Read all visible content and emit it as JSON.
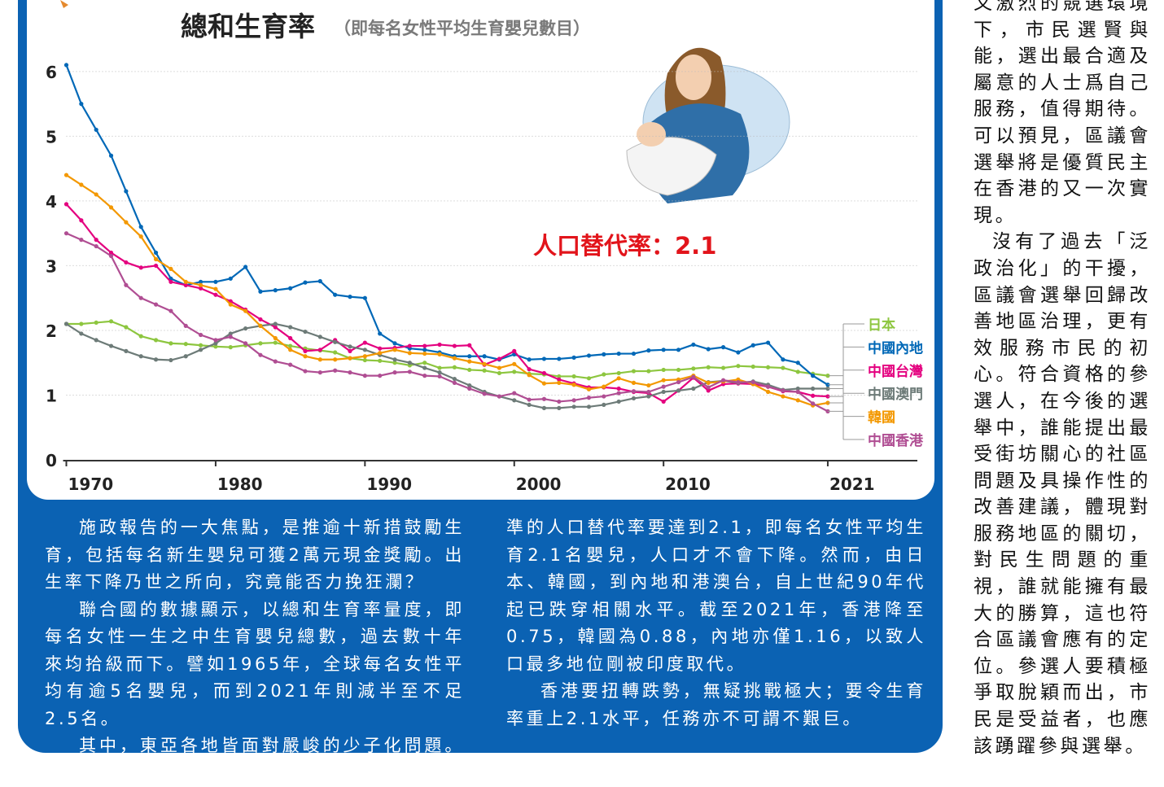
{
  "chart_data": {
    "type": "line",
    "title": "總和生育率",
    "subtitle": "（即每名女性平均生育嬰兒數目）",
    "annotation": "人口替代率：2.1",
    "x": [
      1970,
      1971,
      1972,
      1973,
      1974,
      1975,
      1976,
      1977,
      1978,
      1979,
      1980,
      1981,
      1982,
      1983,
      1984,
      1985,
      1986,
      1987,
      1988,
      1989,
      1990,
      1991,
      1992,
      1993,
      1994,
      1995,
      1996,
      1997,
      1998,
      1999,
      2000,
      2001,
      2002,
      2003,
      2004,
      2005,
      2006,
      2007,
      2008,
      2009,
      2010,
      2011,
      2012,
      2013,
      2014,
      2015,
      2016,
      2017,
      2018,
      2019,
      2020,
      2021
    ],
    "xlim": [
      1970,
      2027
    ],
    "xticks": [
      1970,
      1980,
      1990,
      2000,
      2010,
      2021
    ],
    "ylim": [
      0,
      6.3
    ],
    "yticks": [
      0,
      1,
      2,
      3,
      4,
      5,
      6
    ],
    "grid": true,
    "series": [
      {
        "name": "日本",
        "color": "#8dc63f",
        "values": [
          2.1,
          2.1,
          2.12,
          2.14,
          2.05,
          1.91,
          1.85,
          1.8,
          1.79,
          1.77,
          1.75,
          1.74,
          1.77,
          1.8,
          1.81,
          1.76,
          1.72,
          1.69,
          1.66,
          1.57,
          1.54,
          1.53,
          1.5,
          1.46,
          1.5,
          1.42,
          1.43,
          1.39,
          1.38,
          1.34,
          1.36,
          1.33,
          1.32,
          1.29,
          1.29,
          1.26,
          1.32,
          1.34,
          1.37,
          1.37,
          1.39,
          1.39,
          1.41,
          1.43,
          1.42,
          1.45,
          1.44,
          1.43,
          1.42,
          1.36,
          1.33,
          1.3
        ]
      },
      {
        "name": "中國內地",
        "color": "#0068b7",
        "values": [
          6.1,
          5.5,
          5.1,
          4.7,
          4.15,
          3.6,
          3.2,
          2.8,
          2.7,
          2.75,
          2.75,
          2.8,
          2.98,
          2.6,
          2.62,
          2.65,
          2.74,
          2.76,
          2.55,
          2.52,
          2.5,
          1.95,
          1.8,
          1.72,
          1.7,
          1.66,
          1.6,
          1.6,
          1.6,
          1.55,
          1.63,
          1.55,
          1.56,
          1.56,
          1.58,
          1.61,
          1.63,
          1.64,
          1.64,
          1.69,
          1.7,
          1.7,
          1.78,
          1.71,
          1.74,
          1.66,
          1.77,
          1.81,
          1.55,
          1.5,
          1.3,
          1.16
        ]
      },
      {
        "name": "中國台灣",
        "color": "#e4007f",
        "values": [
          3.95,
          3.7,
          3.4,
          3.2,
          3.05,
          2.97,
          3.0,
          2.75,
          2.7,
          2.65,
          2.55,
          2.45,
          2.32,
          2.17,
          2.05,
          1.88,
          1.68,
          1.7,
          1.85,
          1.68,
          1.81,
          1.72,
          1.73,
          1.76,
          1.76,
          1.78,
          1.76,
          1.77,
          1.47,
          1.56,
          1.68,
          1.4,
          1.34,
          1.24,
          1.18,
          1.12,
          1.12,
          1.1,
          1.05,
          1.03,
          0.9,
          1.07,
          1.27,
          1.07,
          1.17,
          1.18,
          1.17,
          1.13,
          1.06,
          1.05,
          0.99,
          0.98
        ]
      },
      {
        "name": "中國澳門",
        "color": "#6d7b78",
        "values": [
          2.1,
          1.95,
          1.85,
          1.76,
          1.68,
          1.6,
          1.55,
          1.54,
          1.6,
          1.7,
          1.8,
          1.95,
          2.03,
          2.07,
          2.1,
          2.05,
          1.98,
          1.9,
          1.82,
          1.75,
          1.7,
          1.62,
          1.55,
          1.5,
          1.42,
          1.35,
          1.25,
          1.15,
          1.05,
          0.98,
          0.92,
          0.85,
          0.8,
          0.8,
          0.82,
          0.82,
          0.85,
          0.9,
          0.95,
          0.98,
          1.05,
          1.07,
          1.1,
          1.2,
          1.22,
          1.19,
          1.21,
          1.16,
          1.08,
          1.1,
          1.1,
          1.1
        ]
      },
      {
        "name": "韓國",
        "color": "#f39800",
        "values": [
          4.4,
          4.25,
          4.1,
          3.9,
          3.67,
          3.45,
          3.1,
          2.95,
          2.75,
          2.7,
          2.64,
          2.4,
          2.3,
          2.07,
          1.88,
          1.7,
          1.6,
          1.55,
          1.55,
          1.57,
          1.6,
          1.65,
          1.7,
          1.65,
          1.64,
          1.63,
          1.57,
          1.52,
          1.48,
          1.42,
          1.48,
          1.31,
          1.18,
          1.19,
          1.16,
          1.09,
          1.13,
          1.26,
          1.19,
          1.15,
          1.23,
          1.24,
          1.3,
          1.19,
          1.21,
          1.24,
          1.17,
          1.05,
          0.98,
          0.92,
          0.84,
          0.88
        ]
      },
      {
        "name": "中國香港",
        "color": "#b04e93",
        "values": [
          3.5,
          3.4,
          3.3,
          3.15,
          2.7,
          2.5,
          2.4,
          2.3,
          2.07,
          1.93,
          1.85,
          1.9,
          1.8,
          1.62,
          1.52,
          1.47,
          1.37,
          1.35,
          1.38,
          1.35,
          1.3,
          1.3,
          1.35,
          1.36,
          1.3,
          1.29,
          1.19,
          1.1,
          1.02,
          0.98,
          1.03,
          0.93,
          0.94,
          0.9,
          0.92,
          0.96,
          0.98,
          1.03,
          1.06,
          1.05,
          1.13,
          1.2,
          1.28,
          1.12,
          1.23,
          1.2,
          1.2,
          1.13,
          1.07,
          1.05,
          0.87,
          0.75
        ]
      }
    ]
  },
  "article": {
    "columns": [
      [
        "施政報告的一大焦點，是推逾十新措鼓勵生育，包括每名新生嬰兒可獲2萬元現金獎勵。出生率下降乃世之所向，究竟能否力挽狂瀾？",
        "聯合國的數據顯示，以總和生育率量度，即每名女性一生之中生育嬰兒總數，過去數十年來均拾級而下。譬如1965年，全球每名女性平均有逾5名嬰兒，而到2021年則減半至不足2.5名。",
        "其中，東亞各地皆面對嚴峻的少子化問題。標"
      ],
      [
        "準的人口替代率要達到2.1，即每名女性平均生育2.1名嬰兒，人口才不會下降。然而，由日本、韓國，到內地和港澳台，自上世紀90年代起已跌穿相關水平。截至2021年，香港降至0.75，韓國為0.88，內地亦僅1.16，以致人口最多地位剛被印度取代。",
        "香港要扭轉跌勢，無疑挑戰極大；要令生育率重上2.1水平，任務亦不可謂不艱巨。"
      ]
    ]
  },
  "sidebar": {
    "paragraphs": [
      "又激烈的競選環境下，市民選賢與能，選出最合適及屬意的人士爲自己服務，值得期待。可以預見，區議會選舉將是優質民主在香港的又一次實現。",
      "沒有了過去「泛政治化」的干擾，區議會選舉回歸改善地區治理，更有效服務市民的初心。符合資格的參選人，在今後的選舉中，誰能提出最受街坊關心的社區問題及具操作性的改善建議，體現對服務地區的關切，對民生問題的重視，誰就能擁有最大的勝算，這也符合區議會應有的定位。參選人要積極爭取脫穎而出，市民是受益者，也應該踴躍參與選舉。"
    ]
  }
}
